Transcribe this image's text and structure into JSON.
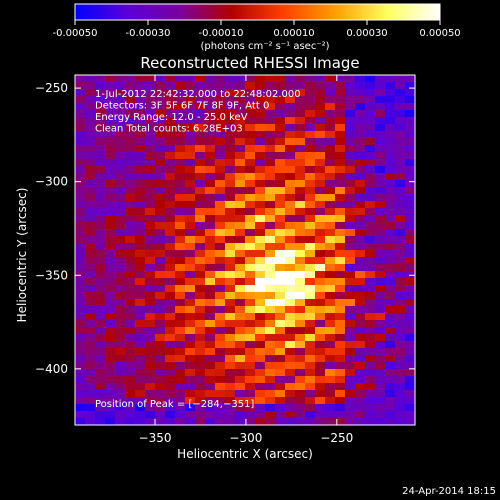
{
  "chart_data": {
    "type": "heatmap",
    "title": "Reconstructed RHESSI Image",
    "colorbar": {
      "min": -0.0005,
      "max": 0.0005,
      "tick_labels": [
        "-0.00050",
        "-0.00030",
        "-0.00010",
        "0.00010",
        "0.00030",
        "0.00050"
      ],
      "tick_values": [
        -0.0005,
        -0.0003,
        -0.0001,
        0.0001,
        0.0003,
        0.0005
      ],
      "units": "(photons cm⁻² s⁻¹ asec⁻²)",
      "colormap": [
        "#0000ff",
        "#5a00d8",
        "#7a00a0",
        "#b00000",
        "#ff4000",
        "#ffa000",
        "#ffff60",
        "#ffffff"
      ]
    },
    "xlabel": "Heliocentric X (arcsec)",
    "ylabel": "Heliocentric Y (arcsec)",
    "xlim": [
      -394,
      -207
    ],
    "ylim": [
      -430,
      -243
    ],
    "x_ticks": [
      -350,
      -300,
      -250
    ],
    "y_ticks": [
      -250,
      -300,
      -350,
      -400
    ],
    "x_tick_labels": [
      "−350",
      "−300",
      "−250"
    ],
    "y_tick_labels": [
      "−250",
      "−300",
      "−350",
      "−400"
    ],
    "annotations": [
      "1-Jul-2012 22:42:32.000 to 22:48:02.000",
      "Detectors: 3F 5F 6F 7F 8F 9F, Att 0",
      "Energy Range: 12.0 - 25.0 keV",
      "Clean    Total counts: 6.28E+03"
    ],
    "peak_label": "Position of Peak = [−284,−351]",
    "peak": [
      -284,
      -351
    ],
    "footer": "24-Apr-2014 18:15"
  }
}
